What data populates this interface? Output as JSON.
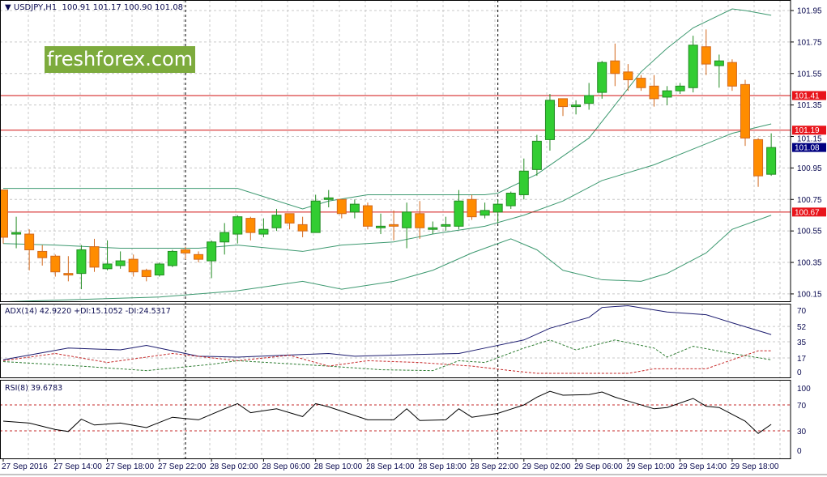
{
  "header": {
    "symbol": "USDJPY,H1",
    "ohlc": "100.91 101.17 100.90 101.08",
    "marker": "▼"
  },
  "watermark": "freshforex.com",
  "adx_label": "ADX(14) 42.9220 +DI:15.1052 -DI:24.5317",
  "rsi_label": "RSI(8) 39.6783",
  "colors": {
    "bull": "#32cd32",
    "bear": "#ff8c00",
    "bands": "#3d9970",
    "level": "#d01010",
    "current": "#000080",
    "adx": "#1a1a6e",
    "plus_di": "#2e7d32",
    "minus_di": "#c62828"
  },
  "chart_data": [
    {
      "type": "candlestick",
      "title": "USDJPY,H1",
      "ylim": [
        100.1,
        102.0
      ],
      "y_ticks": [
        "101.95",
        "101.75",
        "101.55",
        "101.35",
        "101.15",
        "100.95",
        "100.75",
        "100.55",
        "100.35",
        "100.15"
      ],
      "levels": [
        {
          "value": 101.41,
          "label": "101.41"
        },
        {
          "value": 101.19,
          "label": "101.19"
        },
        {
          "value": 100.67,
          "label": "100.67"
        }
      ],
      "current_price": {
        "value": 101.08,
        "label": "101.08"
      },
      "x_labels": [
        {
          "i": 0,
          "t": "27 Sep 2016"
        },
        {
          "i": 4,
          "t": "27 Sep 14:00"
        },
        {
          "i": 8,
          "t": "27 Sep 18:00"
        },
        {
          "i": 12,
          "t": "27 Sep 22:00"
        },
        {
          "i": 16,
          "t": "28 Sep 02:00"
        },
        {
          "i": 20,
          "t": "28 Sep 06:00"
        },
        {
          "i": 24,
          "t": "28 Sep 10:00"
        },
        {
          "i": 28,
          "t": "28 Sep 14:00"
        },
        {
          "i": 32,
          "t": "28 Sep 18:00"
        },
        {
          "i": 36,
          "t": "28 Sep 22:00"
        },
        {
          "i": 40,
          "t": "29 Sep 02:00"
        },
        {
          "i": 44,
          "t": "29 Sep 06:00"
        },
        {
          "i": 48,
          "t": "29 Sep 10:00"
        },
        {
          "i": 52,
          "t": "29 Sep 14:00"
        },
        {
          "i": 56,
          "t": "29 Sep 18:00"
        }
      ],
      "day_separators": [
        14,
        38
      ],
      "ohlc": [
        [
          100.81,
          100.81,
          100.47,
          100.51
        ],
        [
          100.53,
          100.64,
          100.44,
          100.54
        ],
        [
          100.53,
          100.56,
          100.3,
          100.43
        ],
        [
          100.42,
          100.46,
          100.33,
          100.38
        ],
        [
          100.39,
          100.4,
          100.26,
          100.29
        ],
        [
          100.28,
          100.39,
          100.23,
          100.27
        ],
        [
          100.28,
          100.46,
          100.18,
          100.43
        ],
        [
          100.45,
          100.5,
          100.29,
          100.32
        ],
        [
          100.31,
          100.49,
          100.3,
          100.34
        ],
        [
          100.33,
          100.42,
          100.31,
          100.36
        ],
        [
          100.37,
          100.4,
          100.26,
          100.29
        ],
        [
          100.3,
          100.31,
          100.23,
          100.26
        ],
        [
          100.27,
          100.35,
          100.26,
          100.34
        ],
        [
          100.33,
          100.43,
          100.32,
          100.42
        ],
        [
          100.43,
          100.45,
          100.37,
          100.41
        ],
        [
          100.4,
          100.42,
          100.35,
          100.37
        ],
        [
          100.36,
          100.49,
          100.25,
          100.48
        ],
        [
          100.48,
          100.6,
          100.4,
          100.54
        ],
        [
          100.53,
          100.65,
          100.47,
          100.64
        ],
        [
          100.63,
          100.64,
          100.49,
          100.54
        ],
        [
          100.53,
          100.63,
          100.51,
          100.56
        ],
        [
          100.57,
          100.69,
          100.55,
          100.65
        ],
        [
          100.66,
          100.66,
          100.56,
          100.6
        ],
        [
          100.59,
          100.64,
          100.51,
          100.55
        ],
        [
          100.54,
          100.78,
          100.54,
          100.74
        ],
        [
          100.75,
          100.81,
          100.7,
          100.76
        ],
        [
          100.75,
          100.75,
          100.63,
          100.66
        ],
        [
          100.67,
          100.75,
          100.63,
          100.72
        ],
        [
          100.71,
          100.73,
          100.56,
          100.58
        ],
        [
          100.57,
          100.66,
          100.53,
          100.58
        ],
        [
          100.59,
          100.68,
          100.49,
          100.58
        ],
        [
          100.57,
          100.73,
          100.44,
          100.67
        ],
        [
          100.66,
          100.74,
          100.5,
          100.57
        ],
        [
          100.56,
          100.61,
          100.53,
          100.57
        ],
        [
          100.58,
          100.64,
          100.55,
          100.59
        ],
        [
          100.58,
          100.81,
          100.56,
          100.74
        ],
        [
          100.75,
          100.78,
          100.62,
          100.64
        ],
        [
          100.65,
          100.73,
          100.63,
          100.68
        ],
        [
          100.67,
          100.75,
          100.6,
          100.72
        ],
        [
          100.71,
          100.8,
          100.69,
          100.79
        ],
        [
          100.78,
          101.01,
          100.75,
          100.93
        ],
        [
          100.94,
          101.16,
          100.9,
          101.12
        ],
        [
          101.13,
          101.42,
          101.06,
          101.38
        ],
        [
          101.39,
          101.39,
          101.28,
          101.34
        ],
        [
          101.34,
          101.38,
          101.29,
          101.35
        ],
        [
          101.36,
          101.49,
          101.32,
          101.41
        ],
        [
          101.43,
          101.63,
          101.39,
          101.62
        ],
        [
          101.63,
          101.74,
          101.47,
          101.55
        ],
        [
          101.56,
          101.61,
          101.44,
          101.51
        ],
        [
          101.52,
          101.54,
          101.44,
          101.46
        ],
        [
          101.47,
          101.54,
          101.34,
          101.39
        ],
        [
          101.4,
          101.47,
          101.35,
          101.44
        ],
        [
          101.44,
          101.49,
          101.42,
          101.47
        ],
        [
          101.46,
          101.79,
          101.43,
          101.73
        ],
        [
          101.72,
          101.83,
          101.54,
          101.61
        ],
        [
          101.6,
          101.67,
          101.46,
          101.63
        ],
        [
          101.62,
          101.64,
          101.44,
          101.47
        ],
        [
          101.48,
          101.51,
          101.09,
          101.14
        ],
        [
          101.13,
          101.14,
          100.83,
          100.9
        ],
        [
          100.91,
          101.17,
          100.9,
          101.08
        ]
      ],
      "bollinger": {
        "upper": [
          [
            0,
            100.82
          ],
          [
            18,
            100.82
          ],
          [
            23,
            100.69
          ],
          [
            25,
            100.74
          ],
          [
            28,
            100.78
          ],
          [
            37,
            100.78
          ],
          [
            38,
            100.79
          ],
          [
            41,
            100.91
          ],
          [
            45,
            101.14
          ],
          [
            47,
            101.35
          ],
          [
            49,
            101.56
          ],
          [
            51,
            101.71
          ],
          [
            53,
            101.84
          ],
          [
            56,
            101.96
          ],
          [
            57,
            101.95
          ],
          [
            59,
            101.92
          ]
        ],
        "middle": [
          [
            0,
            100.47
          ],
          [
            4,
            100.46
          ],
          [
            9,
            100.44
          ],
          [
            15,
            100.44
          ],
          [
            18,
            100.46
          ],
          [
            23,
            100.42
          ],
          [
            26,
            100.46
          ],
          [
            30,
            100.48
          ],
          [
            33,
            100.53
          ],
          [
            37,
            100.58
          ],
          [
            40,
            100.65
          ],
          [
            43,
            100.74
          ],
          [
            46,
            100.87
          ],
          [
            50,
            100.97
          ],
          [
            53,
            101.07
          ],
          [
            56,
            101.17
          ],
          [
            59,
            101.23
          ]
        ],
        "lower": [
          [
            0,
            100.1
          ],
          [
            12,
            100.13
          ],
          [
            18,
            100.17
          ],
          [
            23,
            100.23
          ],
          [
            26,
            100.18
          ],
          [
            30,
            100.23
          ],
          [
            33,
            100.3
          ],
          [
            36,
            100.41
          ],
          [
            39,
            100.5
          ],
          [
            41,
            100.43
          ],
          [
            43,
            100.3
          ],
          [
            46,
            100.24
          ],
          [
            49,
            100.23
          ],
          [
            51,
            100.28
          ],
          [
            54,
            100.41
          ],
          [
            56,
            100.56
          ],
          [
            59,
            100.65
          ]
        ]
      }
    },
    {
      "type": "line",
      "title": "ADX(14)",
      "ylim": [
        0,
        70
      ],
      "y_ticks": [
        "70",
        "52",
        "35",
        "17",
        "0"
      ],
      "series": [
        {
          "name": "ADX",
          "points": [
            [
              0,
              15
            ],
            [
              5,
              28
            ],
            [
              9,
              26
            ],
            [
              11,
              31
            ],
            [
              15,
              19
            ],
            [
              18,
              18
            ],
            [
              25,
              22
            ],
            [
              27,
              19
            ],
            [
              32,
              21
            ],
            [
              35,
              22
            ],
            [
              37,
              28
            ],
            [
              40,
              37
            ],
            [
              42,
              50
            ],
            [
              45,
              62
            ],
            [
              46,
              73
            ],
            [
              48,
              75
            ],
            [
              51,
              68
            ],
            [
              54,
              65
            ],
            [
              56,
              56
            ],
            [
              59,
              43
            ]
          ]
        },
        {
          "name": "+DI",
          "points": [
            [
              0,
              13
            ],
            [
              6,
              8
            ],
            [
              11,
              3
            ],
            [
              16,
              10
            ],
            [
              18,
              14
            ],
            [
              25,
              8
            ],
            [
              29,
              4
            ],
            [
              33,
              3
            ],
            [
              35,
              14
            ],
            [
              37,
              12
            ],
            [
              40,
              28
            ],
            [
              42,
              37
            ],
            [
              44,
              26
            ],
            [
              47,
              37
            ],
            [
              50,
              28
            ],
            [
              51,
              18
            ],
            [
              53,
              30
            ],
            [
              56,
              22
            ],
            [
              59,
              15
            ]
          ]
        },
        {
          "name": "-DI",
          "points": [
            [
              0,
              14
            ],
            [
              4,
              22
            ],
            [
              8,
              12
            ],
            [
              13,
              22
            ],
            [
              18,
              14
            ],
            [
              22,
              20
            ],
            [
              25,
              8
            ],
            [
              28,
              14
            ],
            [
              32,
              12
            ],
            [
              36,
              8
            ],
            [
              39,
              3
            ],
            [
              41,
              0
            ],
            [
              45,
              0
            ],
            [
              48,
              0
            ],
            [
              50,
              5
            ],
            [
              54,
              5
            ],
            [
              55,
              10
            ],
            [
              58,
              25
            ],
            [
              59,
              25
            ]
          ]
        }
      ]
    },
    {
      "type": "line",
      "title": "RSI(8)",
      "ylim": [
        0,
        100
      ],
      "y_ticks": [
        "100",
        "70",
        "30",
        "0"
      ],
      "levels": [
        70,
        30
      ],
      "series": [
        {
          "name": "RSI",
          "points": [
            [
              0,
              45
            ],
            [
              2,
              42
            ],
            [
              4,
              32
            ],
            [
              5,
              29
            ],
            [
              6,
              48
            ],
            [
              7,
              39
            ],
            [
              9,
              42
            ],
            [
              11,
              35
            ],
            [
              13,
              51
            ],
            [
              15,
              47
            ],
            [
              17,
              64
            ],
            [
              18,
              72
            ],
            [
              19,
              58
            ],
            [
              21,
              64
            ],
            [
              23,
              52
            ],
            [
              24,
              72
            ],
            [
              25,
              67
            ],
            [
              28,
              47
            ],
            [
              30,
              47
            ],
            [
              31,
              64
            ],
            [
              32,
              46
            ],
            [
              34,
              47
            ],
            [
              35,
              64
            ],
            [
              36,
              51
            ],
            [
              38,
              57
            ],
            [
              40,
              70
            ],
            [
              41,
              82
            ],
            [
              42,
              91
            ],
            [
              43,
              85
            ],
            [
              45,
              86
            ],
            [
              46,
              90
            ],
            [
              47,
              82
            ],
            [
              48,
              76
            ],
            [
              50,
              64
            ],
            [
              51,
              66
            ],
            [
              53,
              80
            ],
            [
              54,
              68
            ],
            [
              55,
              66
            ],
            [
              57,
              45
            ],
            [
              58,
              26
            ],
            [
              59,
              40
            ]
          ]
        }
      ]
    }
  ]
}
